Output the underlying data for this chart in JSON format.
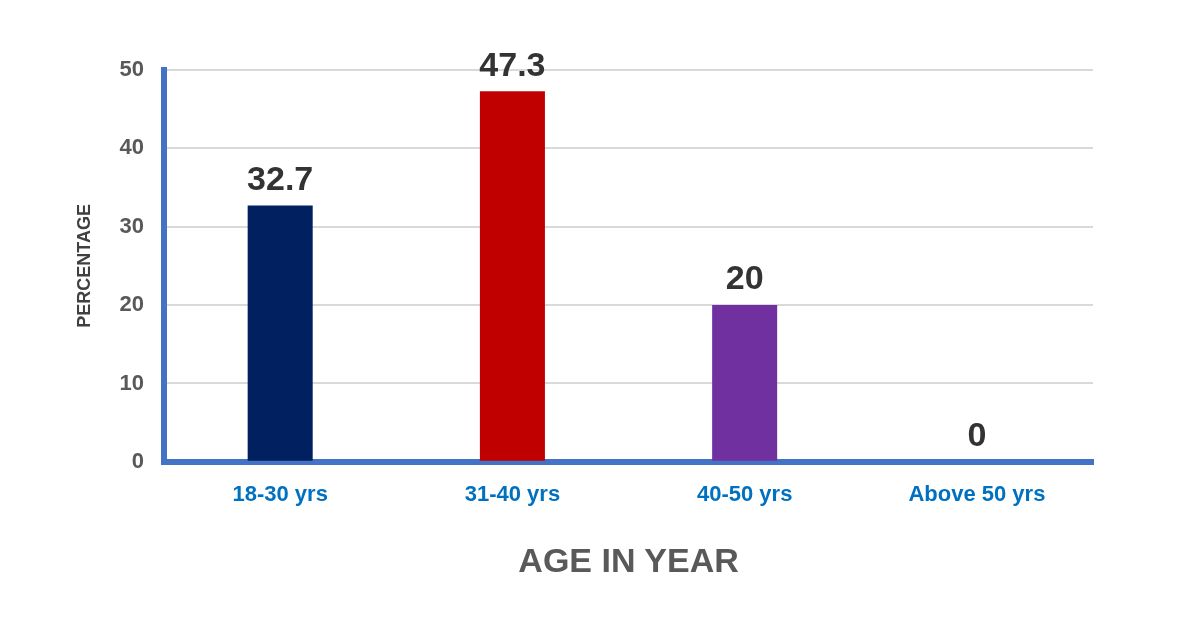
{
  "chart_data": {
    "type": "bar",
    "xlabel": "AGE IN YEAR",
    "ylabel": "PERCENTAGE",
    "categories": [
      "18-30 yrs",
      "31-40 yrs",
      "40-50 yrs",
      "Above 50 yrs"
    ],
    "values": [
      32.7,
      47.3,
      20,
      0
    ],
    "colors": [
      "#002060",
      "#c00000",
      "#7030a0",
      "#00a040"
    ],
    "ylim": [
      0,
      50
    ],
    "yticks": [
      0,
      10,
      20,
      30,
      40,
      50
    ],
    "grid": "y",
    "data_labels": true
  }
}
